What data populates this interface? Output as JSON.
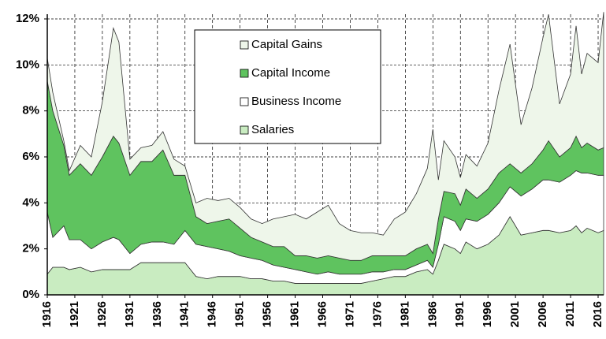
{
  "chart_data": {
    "type": "stacked-area",
    "x": [
      1916,
      1917,
      1919,
      1920,
      1922,
      1924,
      1926,
      1928,
      1929,
      1931,
      1933,
      1935,
      1937,
      1939,
      1941,
      1943,
      1945,
      1947,
      1949,
      1951,
      1953,
      1955,
      1957,
      1959,
      1961,
      1963,
      1965,
      1967,
      1969,
      1971,
      1973,
      1975,
      1977,
      1979,
      1981,
      1983,
      1985,
      1986,
      1987,
      1988,
      1990,
      1991,
      1992,
      1994,
      1996,
      1998,
      2000,
      2002,
      2004,
      2006,
      2007,
      2009,
      2011,
      2012,
      2013,
      2014,
      2016,
      2017
    ],
    "series": [
      {
        "name": "Salaries",
        "color": "#c9ecc1",
        "values": [
          0.9,
          1.2,
          1.2,
          1.1,
          1.2,
          1.0,
          1.1,
          1.1,
          1.1,
          1.1,
          1.4,
          1.4,
          1.4,
          1.4,
          1.4,
          0.8,
          0.7,
          0.8,
          0.8,
          0.8,
          0.7,
          0.7,
          0.6,
          0.6,
          0.5,
          0.5,
          0.5,
          0.5,
          0.5,
          0.5,
          0.5,
          0.6,
          0.7,
          0.8,
          0.8,
          1.0,
          1.1,
          0.9,
          1.5,
          2.2,
          2.0,
          1.8,
          2.3,
          2.0,
          2.2,
          2.6,
          3.4,
          2.6,
          2.7,
          2.8,
          2.8,
          2.7,
          2.8,
          3.0,
          2.7,
          2.9,
          2.7,
          2.8
        ]
      },
      {
        "name": "Business Income",
        "color": "#ffffff",
        "values": [
          2.7,
          1.3,
          1.8,
          1.3,
          1.2,
          1.0,
          1.2,
          1.4,
          1.3,
          0.7,
          0.8,
          0.9,
          0.9,
          0.8,
          1.4,
          1.4,
          1.4,
          1.2,
          1.1,
          0.9,
          0.9,
          0.8,
          0.7,
          0.6,
          0.6,
          0.5,
          0.4,
          0.5,
          0.4,
          0.4,
          0.4,
          0.4,
          0.3,
          0.3,
          0.3,
          0.3,
          0.4,
          0.3,
          0.7,
          1.2,
          1.2,
          1.0,
          1.0,
          1.2,
          1.3,
          1.4,
          1.3,
          1.7,
          1.9,
          2.2,
          2.2,
          2.2,
          2.4,
          2.4,
          2.6,
          2.4,
          2.5,
          2.4
        ]
      },
      {
        "name": "Capital Income",
        "color": "#5fc35f",
        "values": [
          5.7,
          5.5,
          3.5,
          2.8,
          3.3,
          3.2,
          3.7,
          4.4,
          4.2,
          3.4,
          3.6,
          3.5,
          4.0,
          3.0,
          2.4,
          1.2,
          1.0,
          1.2,
          1.4,
          1.2,
          0.9,
          0.8,
          0.8,
          0.9,
          0.6,
          0.7,
          0.7,
          0.7,
          0.7,
          0.6,
          0.6,
          0.7,
          0.7,
          0.6,
          0.6,
          0.7,
          0.7,
          0.6,
          1.1,
          1.1,
          1.2,
          1.1,
          1.3,
          1.0,
          1.1,
          1.3,
          1.0,
          1.0,
          1.1,
          1.3,
          1.7,
          1.1,
          1.2,
          1.5,
          1.1,
          1.3,
          1.1,
          1.2
        ]
      },
      {
        "name": "Capital Gains",
        "color": "#eef6ea",
        "values": [
          1.0,
          0.8,
          0.2,
          0.2,
          0.8,
          0.8,
          2.4,
          4.7,
          4.4,
          0.7,
          0.6,
          0.7,
          0.8,
          0.7,
          0.4,
          0.6,
          1.1,
          0.9,
          0.9,
          0.9,
          0.8,
          0.8,
          1.2,
          1.3,
          1.8,
          1.6,
          2.0,
          2.2,
          1.5,
          1.3,
          1.2,
          1.0,
          0.9,
          1.6,
          1.9,
          2.4,
          3.3,
          5.4,
          1.7,
          2.2,
          1.6,
          1.2,
          1.5,
          1.4,
          2.0,
          3.6,
          5.2,
          2.1,
          3.3,
          4.9,
          5.5,
          2.3,
          3.2,
          4.8,
          3.2,
          3.9,
          3.8,
          5.9
        ]
      }
    ],
    "xlim": [
      1916,
      2017
    ],
    "xticks": [
      1916,
      1921,
      1926,
      1931,
      1936,
      1941,
      1946,
      1951,
      1956,
      1961,
      1966,
      1971,
      1976,
      1981,
      1986,
      1991,
      1996,
      2001,
      2006,
      2011,
      2016
    ],
    "ylim": [
      0,
      12
    ],
    "yticks": [
      {
        "value": 0,
        "label": "0%"
      },
      {
        "value": 2,
        "label": "2%"
      },
      {
        "value": 4,
        "label": "4%"
      },
      {
        "value": 6,
        "label": "6%"
      },
      {
        "value": 8,
        "label": "8%"
      },
      {
        "value": 10,
        "label": "10%"
      },
      {
        "value": 12,
        "label": "12%"
      }
    ],
    "grid": true,
    "legend": "top-center"
  }
}
